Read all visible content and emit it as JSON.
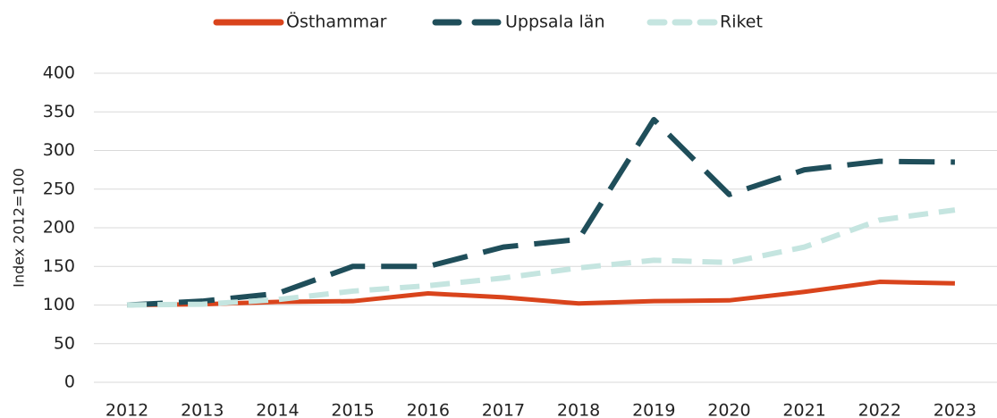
{
  "chart_data": {
    "type": "line",
    "ylabel": "Index 2012=100",
    "categories": [
      "2012",
      "2013",
      "2014",
      "2015",
      "2016",
      "2017",
      "2018",
      "2019",
      "2020",
      "2021",
      "2022",
      "2023"
    ],
    "series": [
      {
        "name": "Östhammar",
        "color": "#d9441c",
        "dash": "none",
        "values": [
          100,
          101,
          104,
          105,
          115,
          110,
          102,
          105,
          106,
          117,
          130,
          128
        ]
      },
      {
        "name": "Uppsala län",
        "color": "#1f4e5a",
        "dash": "40 18",
        "values": [
          100,
          105,
          115,
          150,
          150,
          175,
          185,
          340,
          243,
          275,
          286,
          285
        ]
      },
      {
        "name": "Riket",
        "color": "#c5e5e0",
        "dash": "22 12",
        "values": [
          100,
          101,
          107,
          118,
          125,
          135,
          148,
          158,
          155,
          175,
          210,
          223
        ]
      }
    ],
    "ylim": [
      0,
      400
    ],
    "yticks": [
      0,
      50,
      100,
      150,
      200,
      250,
      300,
      350,
      400
    ],
    "grid": true,
    "legend": "top"
  }
}
